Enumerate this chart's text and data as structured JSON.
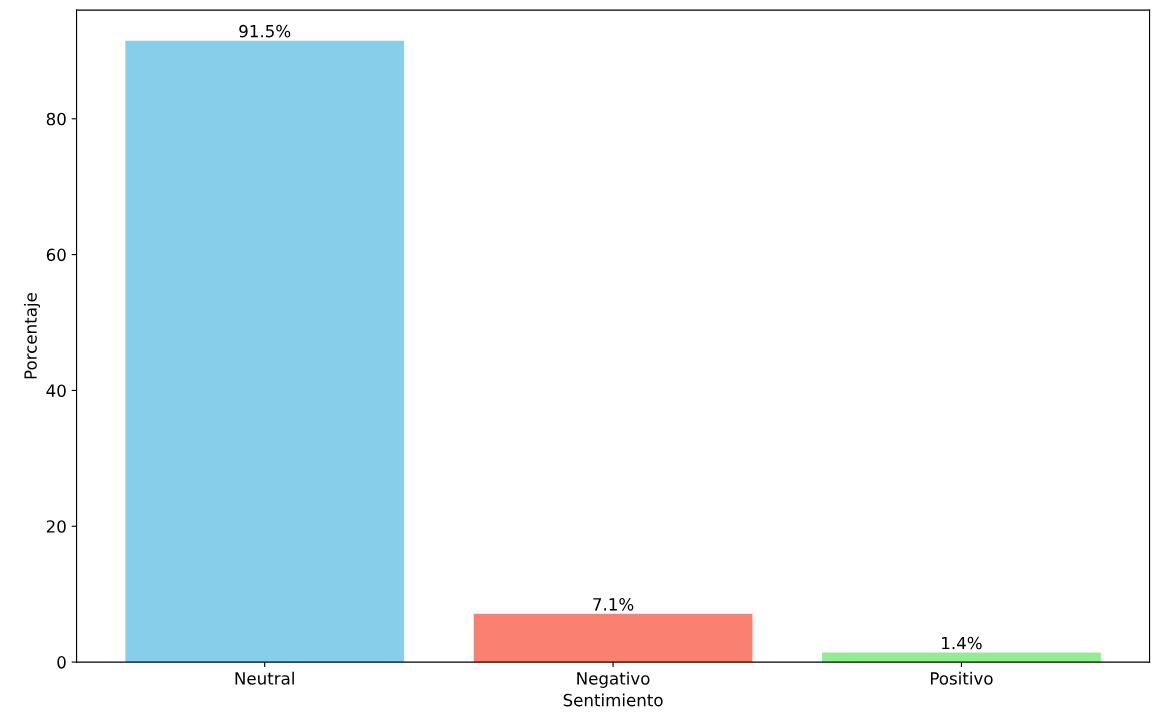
{
  "chart_data": {
    "type": "bar",
    "xlabel": "Sentimiento",
    "ylabel": "Porcentaje",
    "categories": [
      "Neutral",
      "Negativo",
      "Positivo"
    ],
    "values": [
      91.5,
      7.1,
      1.4
    ],
    "colors": [
      "#87ceeb",
      "#fa8072",
      "#90ee90"
    ],
    "value_labels": [
      "91.5%",
      "7.1%",
      "1.4%"
    ],
    "ylim": [
      0,
      96
    ],
    "yticks": [
      0,
      20,
      40,
      60,
      80
    ],
    "grid": false,
    "legend": false
  }
}
